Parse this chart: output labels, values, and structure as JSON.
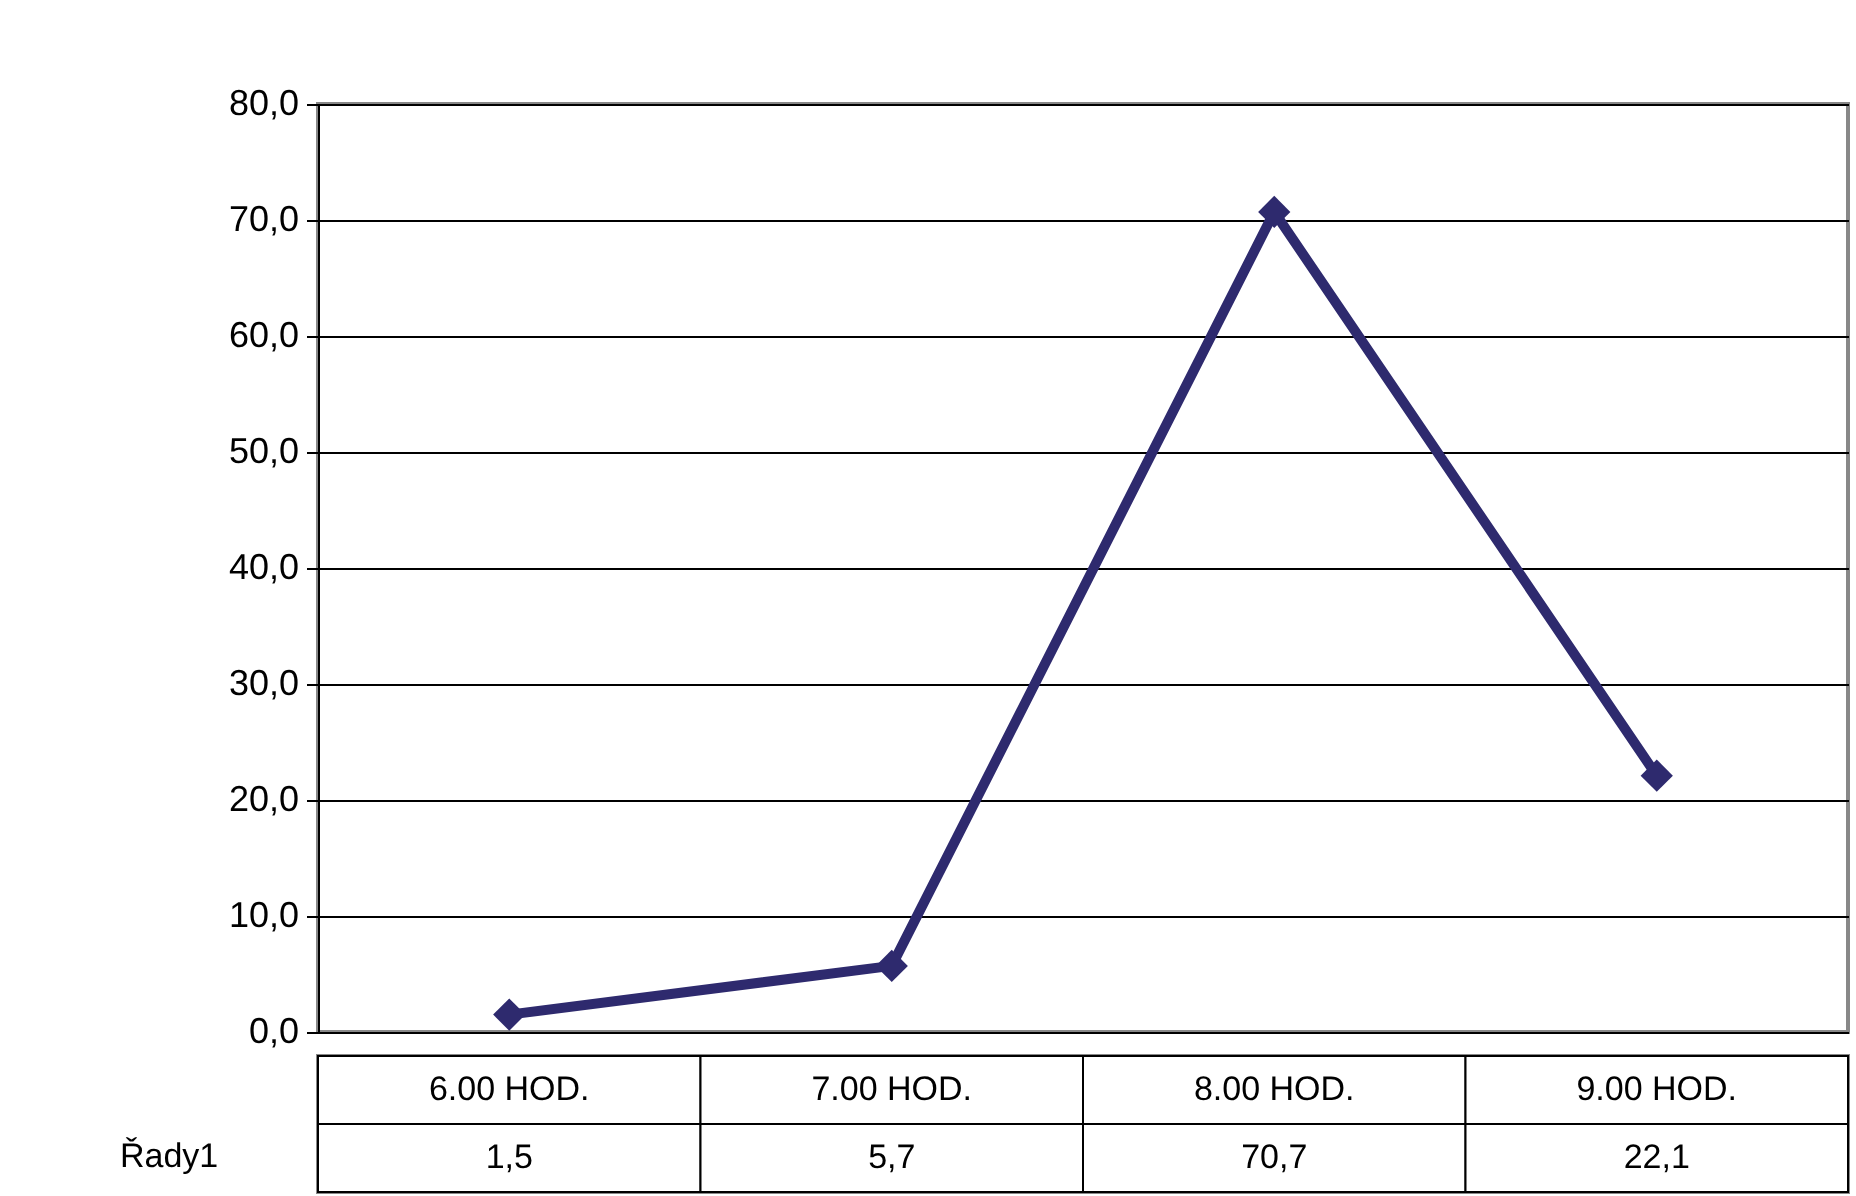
{
  "chart_data": {
    "type": "line",
    "categories": [
      "6.00 HOD.",
      "7.00 HOD.",
      "8.00 HOD.",
      "9.00 HOD."
    ],
    "series": [
      {
        "name": "Řady1",
        "color": "#2e2a6e",
        "values": [
          1.5,
          5.7,
          70.7,
          22.1
        ],
        "value_labels": [
          "1,5",
          "5,7",
          "70,7",
          "22,1"
        ]
      }
    ],
    "ylim": [
      0,
      80
    ],
    "yticks": [
      {
        "value": 0,
        "label": "0,0"
      },
      {
        "value": 10,
        "label": "10,0"
      },
      {
        "value": 20,
        "label": "20,0"
      },
      {
        "value": 30,
        "label": "30,0"
      },
      {
        "value": 40,
        "label": "40,0"
      },
      {
        "value": 50,
        "label": "50,0"
      },
      {
        "value": 60,
        "label": "60,0"
      },
      {
        "value": 70,
        "label": "70,0"
      },
      {
        "value": 80,
        "label": "80,0"
      }
    ],
    "grid": "y",
    "legend": "bottom left",
    "marker": "diamond",
    "line_style": "solid"
  }
}
